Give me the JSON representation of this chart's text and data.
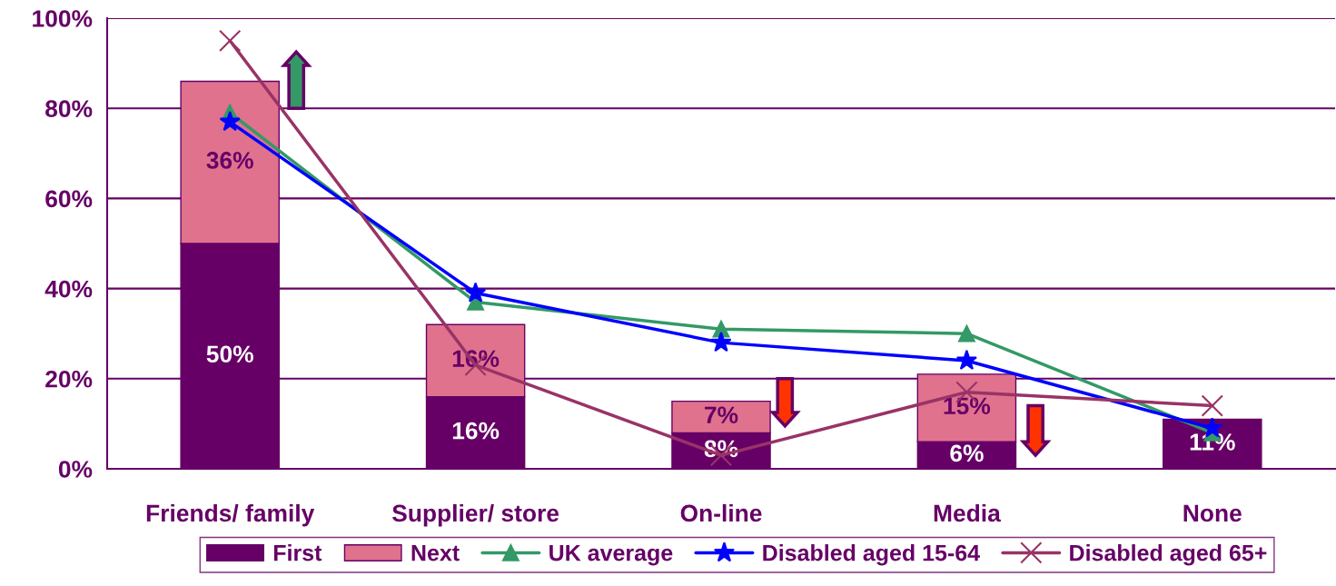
{
  "chart_data": {
    "type": "bar",
    "stacked": true,
    "categories": [
      "Friends/ family",
      "Supplier/ store",
      "On-line",
      "Media",
      "None"
    ],
    "series": [
      {
        "name": "First",
        "color": "#660066",
        "values": [
          50,
          16,
          8,
          6,
          11
        ],
        "value_labels": [
          "50%",
          "16%",
          "8%",
          "6%",
          "11%"
        ]
      },
      {
        "name": "Next",
        "color": "#e0728e",
        "values": [
          36,
          16,
          7,
          15,
          null
        ],
        "value_labels": [
          "36%",
          "16%",
          "7%",
          "15%",
          null
        ]
      },
      {
        "name": "UK average",
        "type": "line",
        "color": "#339966",
        "marker": "triangle",
        "values": [
          79,
          37,
          31,
          30,
          8
        ]
      },
      {
        "name": "Disabled aged 15-64",
        "type": "line",
        "color": "#0000ff",
        "marker": "star",
        "values": [
          77,
          39,
          28,
          24,
          9
        ]
      },
      {
        "name": "Disabled aged 65+",
        "type": "line",
        "color": "#993366",
        "marker": "cross",
        "values": [
          95,
          23,
          3,
          17,
          14
        ]
      }
    ],
    "ylim": [
      0,
      100
    ],
    "yticks": [
      {
        "value": 0,
        "label": "0%"
      },
      {
        "value": 20,
        "label": "20%"
      },
      {
        "value": 40,
        "label": "40%"
      },
      {
        "value": 60,
        "label": "60%"
      },
      {
        "value": 80,
        "label": "80%"
      },
      {
        "value": 100,
        "label": "100%"
      }
    ],
    "grid": "y",
    "legend": "bottom"
  }
}
